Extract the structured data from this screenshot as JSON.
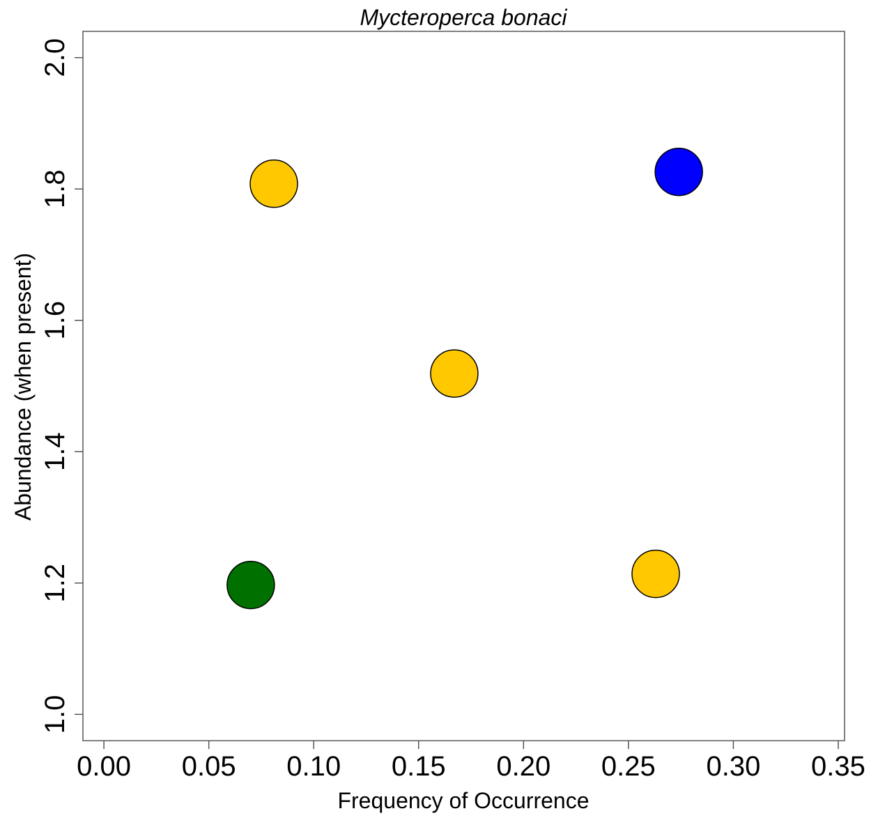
{
  "chart_data": {
    "type": "scatter",
    "title": "Mycteroperca bonaci",
    "xlabel": "Frequency of Occurrence",
    "ylabel": "Abundance (when present)",
    "xlim": [
      -0.01,
      0.353
    ],
    "ylim": [
      0.96,
      2.04
    ],
    "xticks": [
      0.0,
      0.05,
      0.1,
      0.15,
      0.2,
      0.25,
      0.3,
      0.35
    ],
    "xtick_labels": [
      "0.00",
      "0.05",
      "0.10",
      "0.15",
      "0.20",
      "0.25",
      "0.30",
      "0.35"
    ],
    "yticks": [
      1.0,
      1.2,
      1.4,
      1.6,
      1.8,
      2.0
    ],
    "ytick_labels": [
      "1.0",
      "1.2",
      "1.4",
      "1.6",
      "1.8",
      "2.0"
    ],
    "grid": false,
    "points": [
      {
        "x": 0.081,
        "y": 1.808,
        "color": "#FFC800"
      },
      {
        "x": 0.274,
        "y": 1.826,
        "color": "#0000FF"
      },
      {
        "x": 0.167,
        "y": 1.519,
        "color": "#FFC800"
      },
      {
        "x": 0.07,
        "y": 1.197,
        "color": "#007000"
      },
      {
        "x": 0.263,
        "y": 1.214,
        "color": "#FFC800"
      }
    ]
  }
}
